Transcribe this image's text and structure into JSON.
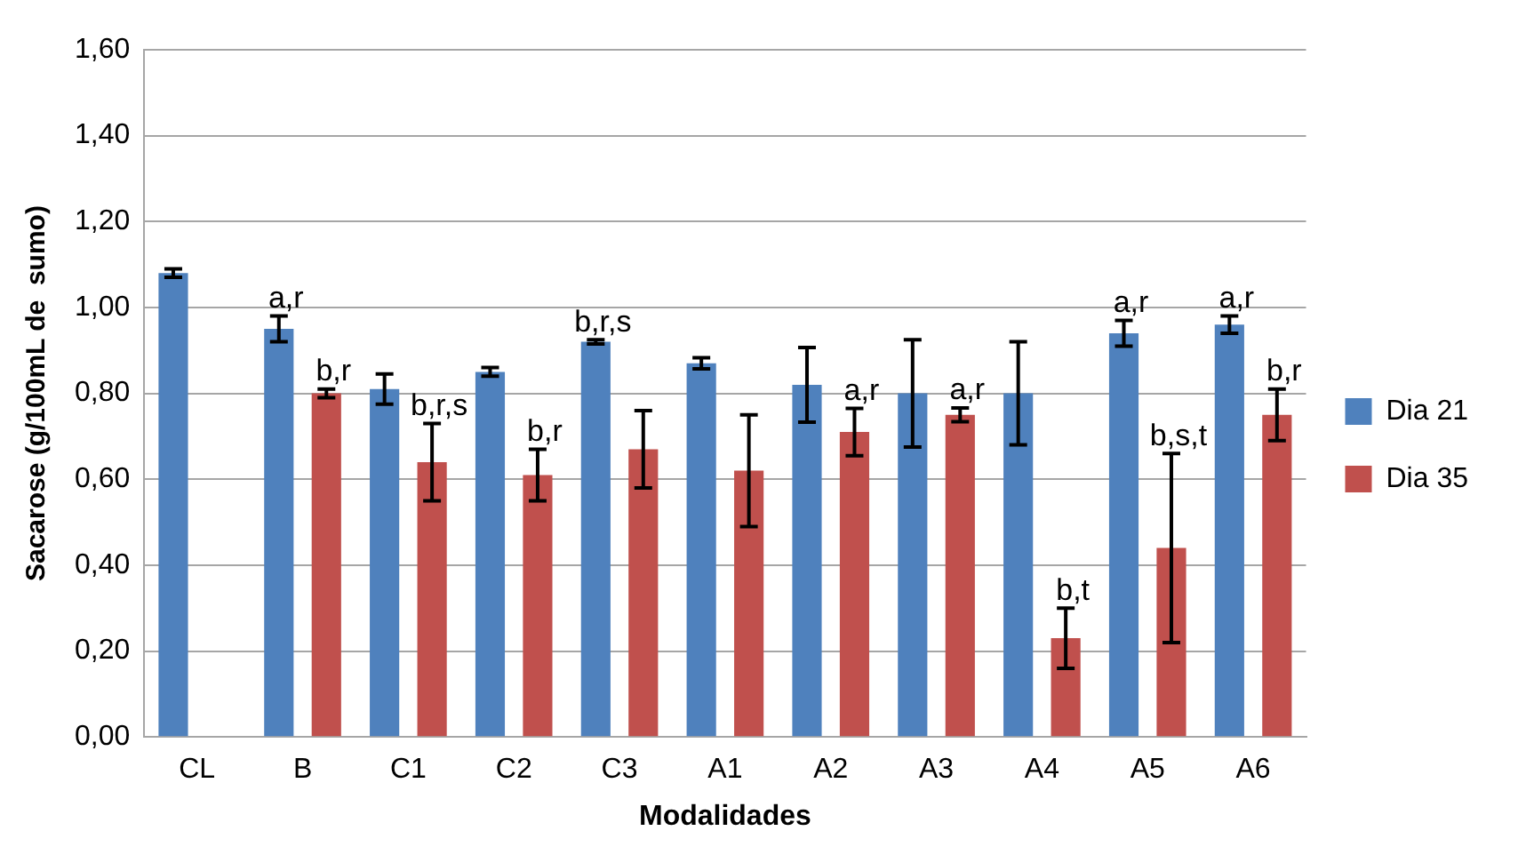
{
  "chart_data": {
    "type": "bar",
    "xlabel": "Modalidades",
    "ylabel": "Sacarose (g/100mL de  sumo)",
    "categories": [
      "CL",
      "B",
      "C1",
      "C2",
      "C3",
      "A1",
      "A2",
      "A3",
      "A4",
      "A5",
      "A6"
    ],
    "series": [
      {
        "name": "Dia 21",
        "color": "#4f81bd",
        "values": [
          1.08,
          0.95,
          0.81,
          0.85,
          0.92,
          0.87,
          0.82,
          0.8,
          0.8,
          0.94,
          0.96
        ],
        "errors": [
          0.01,
          0.03,
          0.035,
          0.01,
          0.005,
          0.013,
          0.087,
          0.125,
          0.12,
          0.03,
          0.02
        ],
        "value_labels": [
          null,
          "a,r",
          null,
          null,
          "b,r,s",
          null,
          null,
          null,
          null,
          "a,r",
          "a,r"
        ]
      },
      {
        "name": "Dia 35",
        "color": "#c0504d",
        "values": [
          null,
          0.8,
          0.64,
          0.61,
          0.67,
          0.62,
          0.71,
          0.75,
          0.23,
          0.44,
          0.75
        ],
        "errors": [
          null,
          0.01,
          0.09,
          0.06,
          0.09,
          0.13,
          0.055,
          0.016,
          0.07,
          0.22,
          0.06
        ],
        "value_labels": [
          null,
          "b,r",
          "b,r,s",
          "b,r",
          null,
          null,
          "a,r",
          "a,r",
          "b,t",
          "b,s,t",
          "b,r"
        ]
      }
    ],
    "ylim": [
      0,
      1.6
    ],
    "yticks": [
      {
        "value": 0,
        "label": "0,00"
      },
      {
        "value": 0.2,
        "label": "0,20"
      },
      {
        "value": 0.4,
        "label": "0,40"
      },
      {
        "value": 0.6,
        "label": "0,60"
      },
      {
        "value": 0.8,
        "label": "0,80"
      },
      {
        "value": 1.0,
        "label": "1,00"
      },
      {
        "value": 1.2,
        "label": "1,20"
      },
      {
        "value": 1.4,
        "label": "1,40"
      },
      {
        "value": 1.6,
        "label": "1,60"
      }
    ],
    "grid": "y",
    "legend": "right"
  }
}
